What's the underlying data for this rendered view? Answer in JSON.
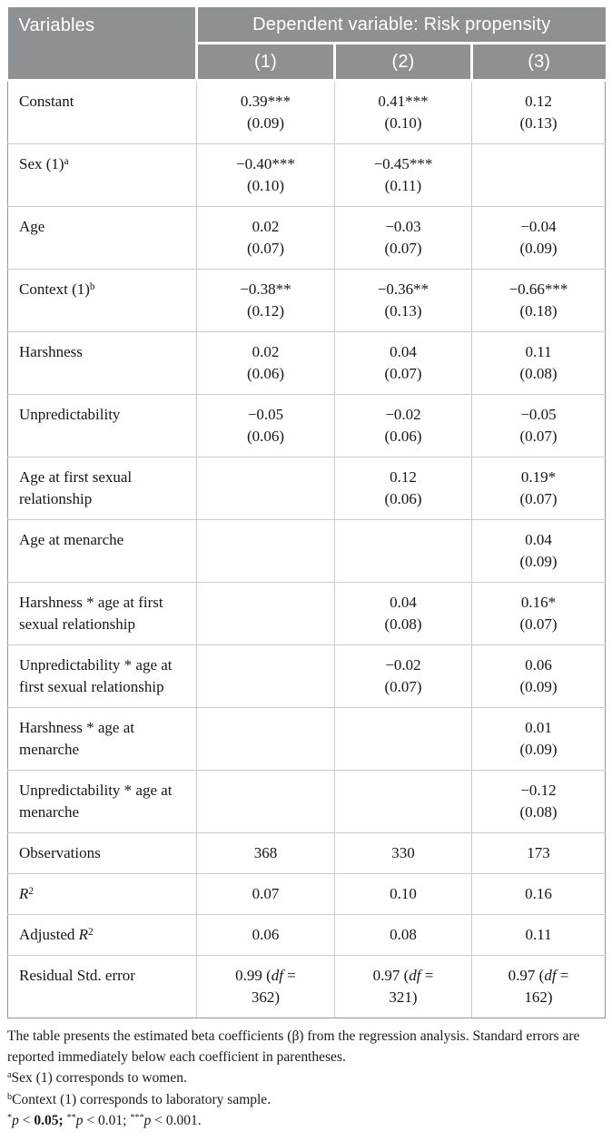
{
  "colors": {
    "header_bg": "#8e9192",
    "header_text": "#ffffff",
    "grid_line": "#cbcbcb",
    "outer_line": "#969696",
    "body_text": "#161616"
  },
  "header": {
    "variables_label": "Variables",
    "dependent_label": "Dependent variable: Risk propensity",
    "models": [
      "(1)",
      "(2)",
      "(3)"
    ]
  },
  "rows": [
    {
      "label": "Constant",
      "cells": [
        [
          "0.39***",
          "(0.09)"
        ],
        [
          "0.41***",
          "(0.10)"
        ],
        [
          "0.12",
          "(0.13)"
        ]
      ]
    },
    {
      "label": [
        "Sex (1)",
        {
          "t": "a",
          "sup": true
        }
      ],
      "cells": [
        [
          "−0.40***",
          "(0.10)"
        ],
        [
          "−0.45***",
          "(0.11)"
        ],
        []
      ]
    },
    {
      "label": "Age",
      "cells": [
        [
          "0.02",
          "(0.07)"
        ],
        [
          "−0.03",
          "(0.07)"
        ],
        [
          "−0.04",
          "(0.09)"
        ]
      ]
    },
    {
      "label": [
        "Context (1)",
        {
          "t": "b",
          "sup": true
        }
      ],
      "cells": [
        [
          "−0.38**",
          "(0.12)"
        ],
        [
          "−0.36**",
          "(0.13)"
        ],
        [
          "−0.66***",
          "(0.18)"
        ]
      ]
    },
    {
      "label": "Harshness",
      "cells": [
        [
          "0.02",
          "(0.06)"
        ],
        [
          "0.04",
          "(0.07)"
        ],
        [
          "0.11",
          "(0.08)"
        ]
      ]
    },
    {
      "label": "Unpredictability",
      "cells": [
        [
          "−0.05",
          "(0.06)"
        ],
        [
          "−0.02",
          "(0.06)"
        ],
        [
          "−0.05",
          "(0.07)"
        ]
      ]
    },
    {
      "label": "Age at first sexual relationship",
      "cells": [
        [],
        [
          "0.12",
          "(0.06)"
        ],
        [
          "0.19*",
          "(0.07)"
        ]
      ]
    },
    {
      "label": "Age at menarche",
      "cells": [
        [],
        [],
        [
          "0.04",
          "(0.09)"
        ]
      ]
    },
    {
      "label": "Harshness * age at first sexual relationship",
      "cells": [
        [],
        [
          "0.04",
          "(0.08)"
        ],
        [
          "0.16*",
          "(0.07)"
        ]
      ]
    },
    {
      "label": "Unpredictability * age at first sexual relationship",
      "cells": [
        [],
        [
          "−0.02",
          "(0.07)"
        ],
        [
          "0.06",
          "(0.09)"
        ]
      ]
    },
    {
      "label": "Harshness * age at menarche",
      "cells": [
        [],
        [],
        [
          "0.01",
          "(0.09)"
        ]
      ]
    },
    {
      "label": "Unpredictability * age at menarche",
      "cells": [
        [],
        [],
        [
          "−0.12",
          "(0.08)"
        ]
      ]
    },
    {
      "label": "Observations",
      "cells": [
        [
          "368"
        ],
        [
          "330"
        ],
        [
          "173"
        ]
      ]
    },
    {
      "label": [
        {
          "t": "R",
          "i": true
        },
        {
          "t": "2",
          "sup": true
        }
      ],
      "cells": [
        [
          "0.07"
        ],
        [
          "0.10"
        ],
        [
          "0.16"
        ]
      ]
    },
    {
      "label": [
        "Adjusted ",
        {
          "t": "R",
          "i": true
        },
        {
          "t": "2",
          "sup": true
        }
      ],
      "cells": [
        [
          "0.06"
        ],
        [
          "0.08"
        ],
        [
          "0.11"
        ]
      ]
    },
    {
      "label": "Residual Std. error",
      "cells": [
        [
          [
            "0.99 (",
            {
              "t": "df",
              "i": true
            },
            {
              "t": " ="
            }
          ],
          "362)"
        ],
        [
          [
            "0.97 (",
            {
              "t": "df",
              "i": true
            },
            {
              "t": " ="
            }
          ],
          "321)"
        ],
        [
          [
            "0.97 (",
            {
              "t": "df",
              "i": true
            },
            {
              "t": " ="
            }
          ],
          "162)"
        ]
      ]
    }
  ],
  "footnotes": [
    "The table presents the estimated beta coefficients (β) from the regression analysis. Standard errors are reported immediately below each coefficient in parentheses.",
    [
      {
        "t": "a",
        "sup": true
      },
      "Sex (1) corresponds to women."
    ],
    [
      {
        "t": "b",
        "sup": true
      },
      "Context (1) corresponds to laboratory sample."
    ],
    [
      {
        "t": "*",
        "sup": true
      },
      {
        "t": "p",
        "i": true
      },
      " < ",
      {
        "t": "0.05;",
        "b": true
      },
      " ",
      {
        "t": "**",
        "sup": true
      },
      {
        "t": "p",
        "i": true
      },
      " < 0.01; ",
      {
        "t": "***",
        "sup": true
      },
      {
        "t": "p",
        "i": true
      },
      " < 0.001."
    ]
  ]
}
